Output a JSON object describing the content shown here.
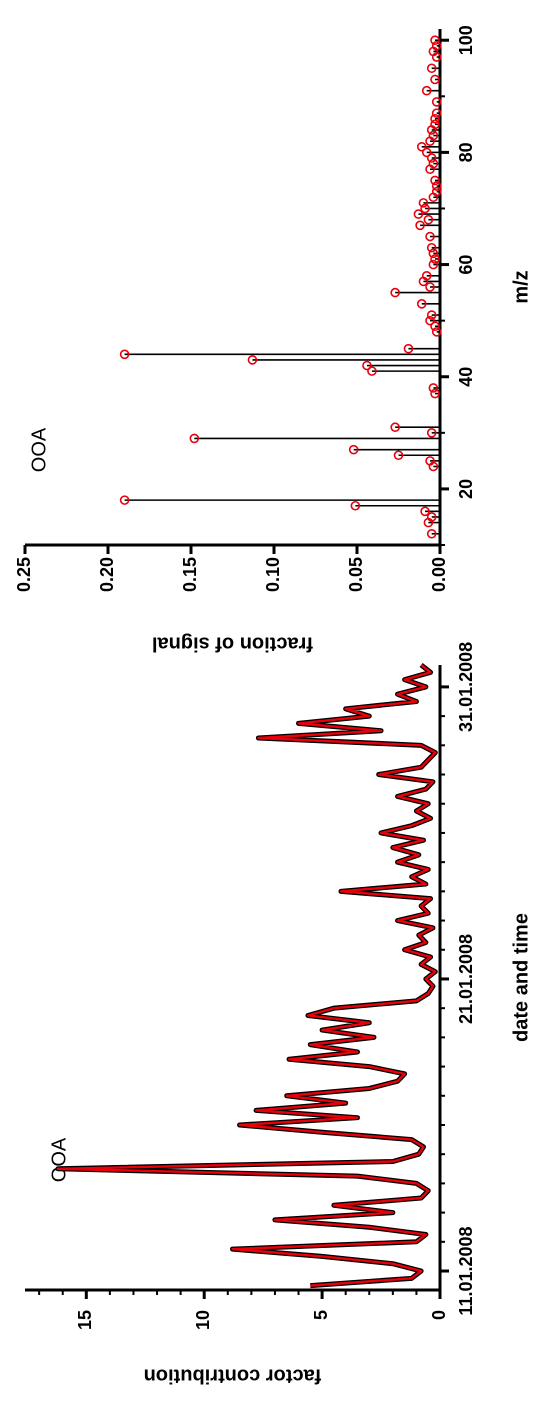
{
  "chart_data": [
    {
      "type": "line",
      "annotation": "OOA",
      "xlabel": "date and time",
      "ylabel": "factor contribution",
      "x": [
        10.5,
        10.75,
        11,
        11.25,
        11.5,
        11.75,
        12,
        12.25,
        12.5,
        12.75,
        13,
        13.25,
        13.5,
        13.75,
        14,
        14.25,
        14.5,
        14.75,
        15,
        15.25,
        15.5,
        15.75,
        16,
        16.25,
        16.5,
        16.75,
        17,
        17.25,
        17.5,
        17.75,
        18,
        18.25,
        18.5,
        18.75,
        19,
        19.25,
        19.5,
        19.75,
        20,
        20.25,
        20.5,
        20.75,
        21,
        21.25,
        21.5,
        21.75,
        22,
        22.25,
        22.5,
        22.75,
        23,
        23.25,
        23.5,
        23.75,
        24,
        24.25,
        24.5,
        24.75,
        25,
        25.25,
        25.5,
        25.75,
        26,
        26.25,
        26.5,
        26.75,
        27,
        27.25,
        27.5,
        27.75,
        28,
        28.25,
        28.5,
        28.75,
        29,
        29.25,
        29.5,
        29.75,
        30,
        30.25,
        30.5,
        30.75,
        31,
        31.25,
        31.5,
        31.75
      ],
      "values": [
        5.5,
        1.2,
        0.8,
        2.0,
        5.0,
        8.8,
        1.0,
        0.6,
        3.0,
        7.0,
        2.0,
        4.5,
        0.8,
        0.5,
        1.0,
        3.5,
        16.2,
        2.0,
        0.9,
        0.7,
        1.2,
        5.0,
        8.5,
        3.5,
        7.8,
        4.0,
        6.5,
        3.0,
        1.8,
        1.5,
        3.0,
        6.4,
        3.5,
        5.5,
        2.8,
        5.0,
        3.0,
        5.6,
        4.5,
        1.0,
        0.5,
        0.3,
        0.6,
        0.2,
        0.8,
        0.4,
        1.5,
        0.6,
        0.9,
        0.3,
        1.8,
        0.5,
        0.8,
        0.4,
        4.2,
        0.6,
        1.2,
        0.5,
        1.8,
        0.9,
        2.0,
        0.7,
        2.5,
        1.2,
        0.4,
        1.0,
        0.5,
        1.8,
        0.6,
        0.3,
        2.6,
        0.8,
        0.5,
        0.2,
        0.8,
        7.7,
        2.5,
        6.0,
        3.0,
        4.0,
        1.0,
        1.8,
        0.6,
        1.5,
        0.4,
        0.8
      ],
      "color": "#e8000b",
      "edgecolor": "#000000",
      "xlim": [
        10.35,
        31.75
      ],
      "xticks": [
        {
          "value": 11,
          "label": "11.01.2008"
        },
        {
          "value": 21,
          "label": "21.01.2008"
        },
        {
          "value": 31,
          "label": "31.01.2008"
        }
      ],
      "xminor_step": 1,
      "ylim": [
        0,
        17.6
      ],
      "yticks": [
        0,
        5,
        10,
        15
      ],
      "yminor_step": 1
    },
    {
      "type": "stem",
      "annotation": "OOA",
      "xlabel": "m/z",
      "ylabel": "fraction of signal",
      "x": [
        12,
        14,
        15,
        16,
        17,
        18,
        24,
        25,
        26,
        27,
        29,
        30,
        31,
        37,
        38,
        41,
        42,
        43,
        44,
        45,
        48,
        49,
        50,
        51,
        53,
        55,
        56,
        57,
        58,
        60,
        61,
        62,
        63,
        65,
        67,
        68,
        69,
        70,
        71,
        72,
        73,
        74,
        75,
        77,
        78,
        79,
        80,
        81,
        82,
        83,
        84,
        85,
        86,
        87,
        89,
        91,
        93,
        95,
        97,
        98,
        99,
        100
      ],
      "values": [
        0.005,
        0.007,
        0.005,
        0.009,
        0.051,
        0.19,
        0.004,
        0.006,
        0.025,
        0.052,
        0.148,
        0.005,
        0.027,
        0.003,
        0.004,
        0.041,
        0.044,
        0.113,
        0.19,
        0.019,
        0.002,
        0.003,
        0.006,
        0.005,
        0.011,
        0.027,
        0.006,
        0.01,
        0.008,
        0.004,
        0.003,
        0.004,
        0.005,
        0.006,
        0.012,
        0.007,
        0.013,
        0.009,
        0.01,
        0.004,
        0.002,
        0.002,
        0.003,
        0.006,
        0.004,
        0.005,
        0.008,
        0.011,
        0.006,
        0.004,
        0.005,
        0.003,
        0.003,
        0.002,
        0.002,
        0.008,
        0.003,
        0.005,
        0.002,
        0.004,
        0.002,
        0.003
      ],
      "color": "#e8000b",
      "stemcolor": "#000000",
      "xlim": [
        10,
        102
      ],
      "xticks": [
        20,
        40,
        60,
        80,
        100
      ],
      "xminor_step": 10,
      "ylim": [
        0,
        0.25
      ],
      "yticks": [
        {
          "value": 0,
          "label": "0.00"
        },
        0.05,
        {
          "value": 0.1,
          "label": "0.10"
        },
        0.15,
        {
          "value": 0.2,
          "label": "0.20"
        },
        0.25
      ]
    }
  ]
}
